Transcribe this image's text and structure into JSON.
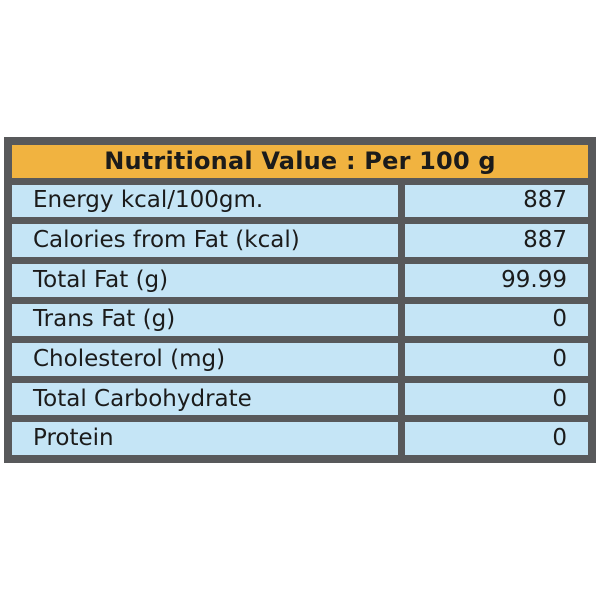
{
  "table": {
    "title": "Nutritional Value : Per 100 g",
    "rows": [
      {
        "label": "Energy kcal/100gm.",
        "value": "887"
      },
      {
        "label": "Calories from Fat (kcal)",
        "value": "887"
      },
      {
        "label": "Total Fat (g)",
        "value": "99.99"
      },
      {
        "label": "Trans Fat (g)",
        "value": "0"
      },
      {
        "label": "Cholesterol (mg)",
        "value": "0"
      },
      {
        "label": "Total Carbohydrate",
        "value": "0"
      },
      {
        "label": "Protein",
        "value": "0"
      }
    ],
    "colors": {
      "header_bg": "#F1B340",
      "row_bg": "#C5E5F6",
      "border": "#58595B",
      "text": "#1B1B1B",
      "page_bg": "#FFFFFF"
    }
  }
}
